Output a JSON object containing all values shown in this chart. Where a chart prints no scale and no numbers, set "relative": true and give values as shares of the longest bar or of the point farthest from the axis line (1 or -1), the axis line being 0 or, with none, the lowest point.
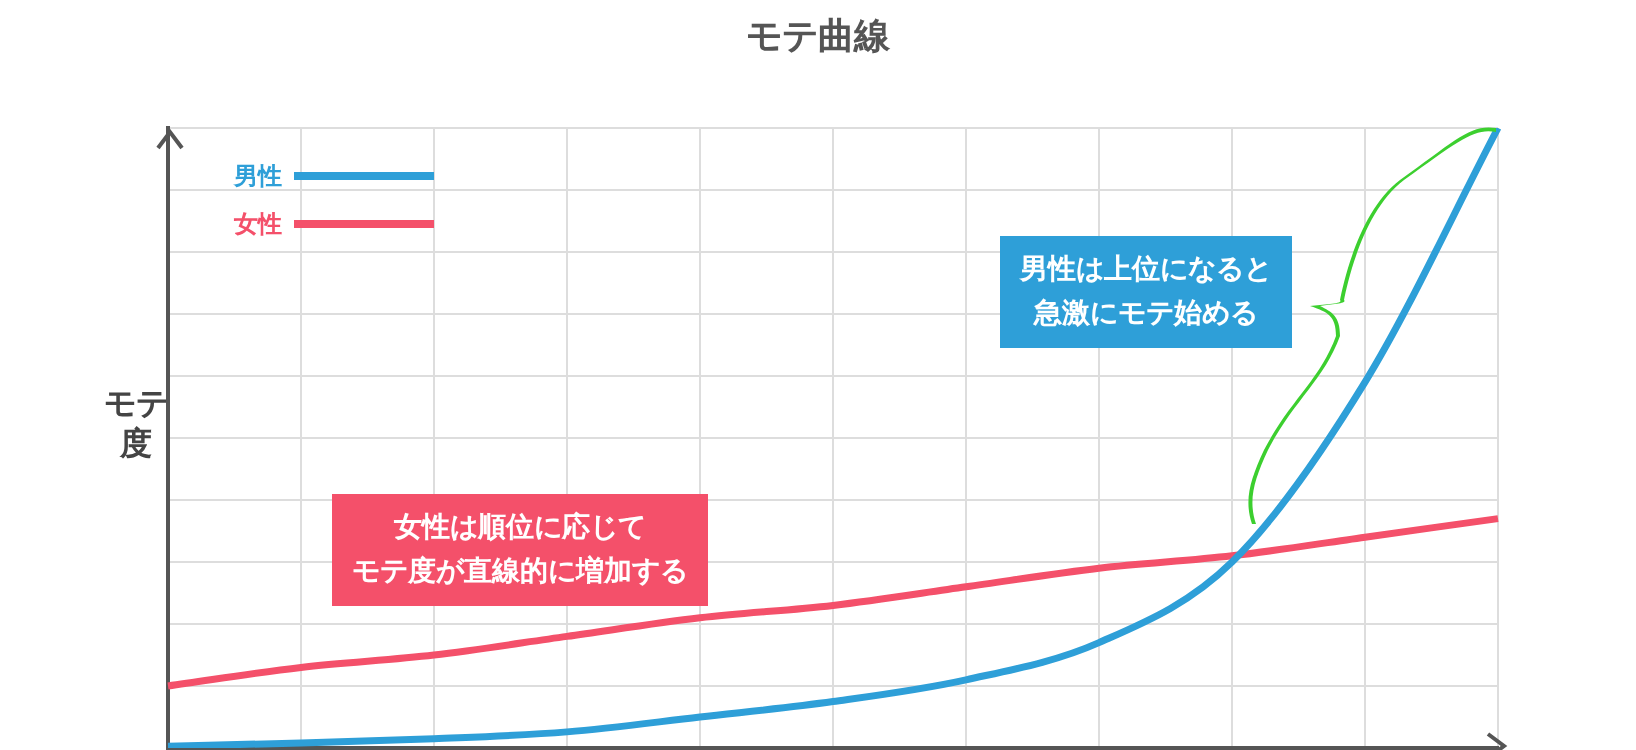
{
  "chart_data": {
    "type": "line",
    "title": "モテ曲線",
    "ylabel": "モテ度",
    "relative": true,
    "grid": true,
    "legend": "top left",
    "marker": "none",
    "line_style": "solid",
    "categories": [
      null,
      null,
      null,
      null,
      null,
      null,
      null,
      null,
      null,
      null,
      null
    ],
    "series": [
      {
        "name": "男性",
        "color": "#2e9fd8",
        "values": [
          0.003,
          0.008,
          0.015,
          0.026,
          0.05,
          0.075,
          0.11,
          0.17,
          0.3,
          0.59,
          1
        ]
      },
      {
        "name": "女性",
        "color": "#f4506a",
        "values": [
          0.1,
          0.13,
          0.15,
          0.18,
          0.21,
          0.23,
          0.26,
          0.29,
          0.31,
          0.34,
          0.37
        ]
      }
    ],
    "annotations": [
      "男性は上位になると急激にモテ始める",
      "女性は順位に応じてモテ度が直線的に増加する"
    ]
  }
}
